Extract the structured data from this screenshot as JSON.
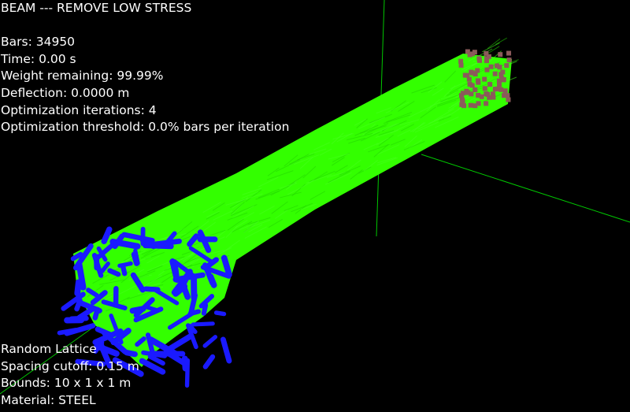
{
  "title": "BEAM --- REMOVE LOW STRESS",
  "stats": {
    "bars": "Bars: 34950",
    "time": "Time: 0.00 s",
    "weight": "Weight remaining: 99.99%",
    "deflection": "Deflection: 0.0000 m",
    "iterations": "Optimization iterations: 4",
    "threshold": "Optimization threshold: 0.0% bars per iteration"
  },
  "lattice": {
    "type": "Random Lattice",
    "spacing": "Spacing cutoff: 0.15 m",
    "bounds": "Bounds: 10 x 1 x 1 m",
    "material": "Material: STEEL"
  },
  "colors": {
    "background": "#000000",
    "text": "#ffffff",
    "axes": "#00c800",
    "beam": "#33ff00",
    "fixed_support": "#1a1aff",
    "load_nodes": "#8b5a5a"
  }
}
